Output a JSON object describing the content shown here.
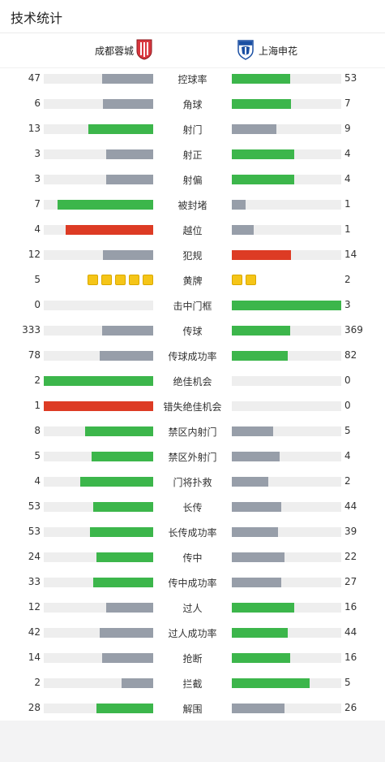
{
  "header": {
    "title": "技术统计"
  },
  "teams": {
    "home": {
      "name": "成都蓉城",
      "logo_icon": "chengdu-rongcheng-crest-icon",
      "color": "#d9363e"
    },
    "away": {
      "name": "上海申花",
      "logo_icon": "shanghai-shenhua-crest-icon",
      "color": "#1a4fa3"
    }
  },
  "colors": {
    "leader": "#3cb64b",
    "trailer": "#979ea9",
    "negative": "#dd3b24",
    "track": "#eeeeee",
    "yellow_card": "#f5c518"
  },
  "stats": [
    {
      "label": "控球率",
      "home": "47",
      "away": "53",
      "home_share": 0.47,
      "away_share": 0.53
    },
    {
      "label": "角球",
      "home": "6",
      "away": "7",
      "home_share": 0.46,
      "away_share": 0.54
    },
    {
      "label": "射门",
      "home": "13",
      "away": "9",
      "home_share": 0.59,
      "away_share": 0.41
    },
    {
      "label": "射正",
      "home": "3",
      "away": "4",
      "home_share": 0.43,
      "away_share": 0.57
    },
    {
      "label": "射偏",
      "home": "3",
      "away": "4",
      "home_share": 0.43,
      "away_share": 0.57
    },
    {
      "label": "被封堵",
      "home": "7",
      "away": "1",
      "home_share": 0.875,
      "away_share": 0.125
    },
    {
      "label": "越位",
      "home": "4",
      "away": "1",
      "home_share": 0.8,
      "away_share": 0.2,
      "negative": true
    },
    {
      "label": "犯规",
      "home": "12",
      "away": "14",
      "home_share": 0.46,
      "away_share": 0.54,
      "negative": true
    },
    {
      "label": "黄牌",
      "home": "5",
      "away": "2",
      "cards": true,
      "home_cards": 5,
      "away_cards": 2
    },
    {
      "label": "击中门框",
      "home": "0",
      "away": "3",
      "home_share": 0,
      "away_share": 1
    },
    {
      "label": "传球",
      "home": "333",
      "away": "369",
      "home_share": 0.47,
      "away_share": 0.53
    },
    {
      "label": "传球成功率",
      "home": "78",
      "away": "82",
      "home_share": 0.49,
      "away_share": 0.51
    },
    {
      "label": "绝佳机会",
      "home": "2",
      "away": "0",
      "home_share": 1,
      "away_share": 0
    },
    {
      "label": "错失绝佳机会",
      "home": "1",
      "away": "0",
      "home_share": 1,
      "away_share": 0,
      "negative": true
    },
    {
      "label": "禁区内射门",
      "home": "8",
      "away": "5",
      "home_share": 0.62,
      "away_share": 0.38
    },
    {
      "label": "禁区外射门",
      "home": "5",
      "away": "4",
      "home_share": 0.56,
      "away_share": 0.44
    },
    {
      "label": "门将扑救",
      "home": "4",
      "away": "2",
      "home_share": 0.67,
      "away_share": 0.33
    },
    {
      "label": "长传",
      "home": "53",
      "away": "44",
      "home_share": 0.55,
      "away_share": 0.45
    },
    {
      "label": "长传成功率",
      "home": "53",
      "away": "39",
      "home_share": 0.58,
      "away_share": 0.42
    },
    {
      "label": "传中",
      "home": "24",
      "away": "22",
      "home_share": 0.52,
      "away_share": 0.48
    },
    {
      "label": "传中成功率",
      "home": "33",
      "away": "27",
      "home_share": 0.55,
      "away_share": 0.45
    },
    {
      "label": "过人",
      "home": "12",
      "away": "16",
      "home_share": 0.43,
      "away_share": 0.57
    },
    {
      "label": "过人成功率",
      "home": "42",
      "away": "44",
      "home_share": 0.49,
      "away_share": 0.51
    },
    {
      "label": "抢断",
      "home": "14",
      "away": "16",
      "home_share": 0.47,
      "away_share": 0.53
    },
    {
      "label": "拦截",
      "home": "2",
      "away": "5",
      "home_share": 0.29,
      "away_share": 0.71
    },
    {
      "label": "解围",
      "home": "28",
      "away": "26",
      "home_share": 0.52,
      "away_share": 0.48
    }
  ]
}
